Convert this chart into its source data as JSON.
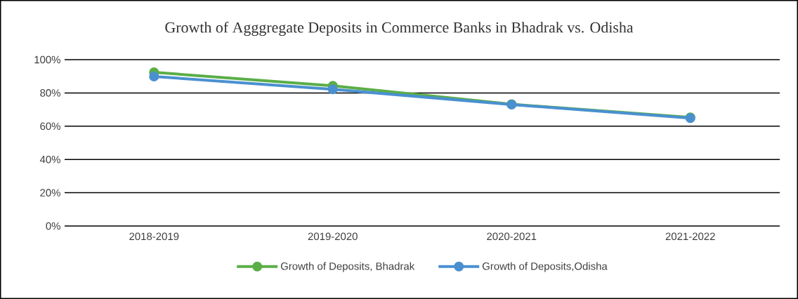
{
  "chart_data": {
    "type": "line",
    "title": "Growth of Agggregate Deposits in Commerce Banks in Bhadrak vs. Odisha",
    "categories": [
      "2018-2019",
      "2019-2020",
      "2020-2021",
      "2021-2022"
    ],
    "series": [
      {
        "name": "Growth of Deposits, Bhadrak",
        "color": "#5aae47",
        "values": [
          92.4,
          84.3,
          73.2,
          65.3
        ]
      },
      {
        "name": "Growth of Deposits,Odisha",
        "color": "#4a90d0",
        "values": [
          89.9,
          82.2,
          73.0,
          64.9
        ]
      }
    ],
    "ylim": [
      0,
      100
    ],
    "yticks": [
      {
        "value": 0,
        "label": "0%"
      },
      {
        "value": 20,
        "label": "20%"
      },
      {
        "value": 40,
        "label": "40%"
      },
      {
        "value": 60,
        "label": "60%"
      },
      {
        "value": 80,
        "label": "80%"
      },
      {
        "value": 100,
        "label": "100%"
      }
    ],
    "grid": "y",
    "legend": "bottom",
    "marker": "circle",
    "line_style": "solid"
  }
}
